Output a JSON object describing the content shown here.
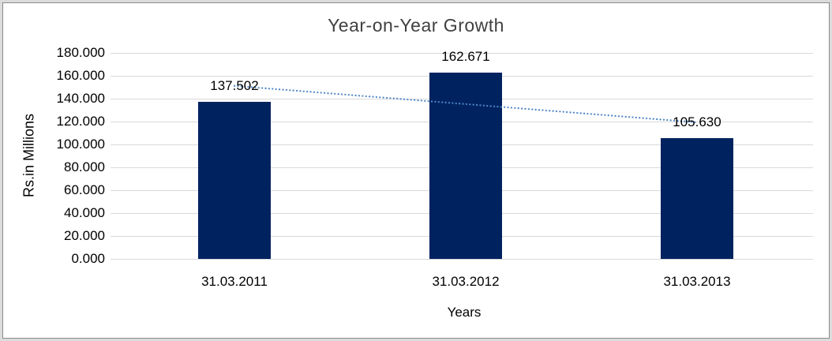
{
  "chart_data": {
    "type": "bar",
    "title": "Year-on-Year Growth",
    "xlabel": "Years",
    "ylabel": "Rs.in Millions",
    "categories": [
      "31.03.2011",
      "31.03.2012",
      "31.03.2013"
    ],
    "values": [
      137.502,
      162.671,
      105.63
    ],
    "value_labels": [
      "137.502",
      "162.671",
      "105.630"
    ],
    "ylim": [
      0,
      180
    ],
    "ytick_step": 20,
    "ytick_labels": [
      "0.000",
      "20.000",
      "40.000",
      "60.000",
      "80.000",
      "100.000",
      "120.000",
      "140.000",
      "160.000",
      "180.000"
    ],
    "grid": true,
    "legend": false,
    "bar_color": "#002360",
    "gridline_color": "#d9d9d9",
    "trendline": {
      "type": "linear",
      "style": "dotted",
      "color": "#4e86c6",
      "start_value": 151.2,
      "end_value": 119.3
    }
  }
}
